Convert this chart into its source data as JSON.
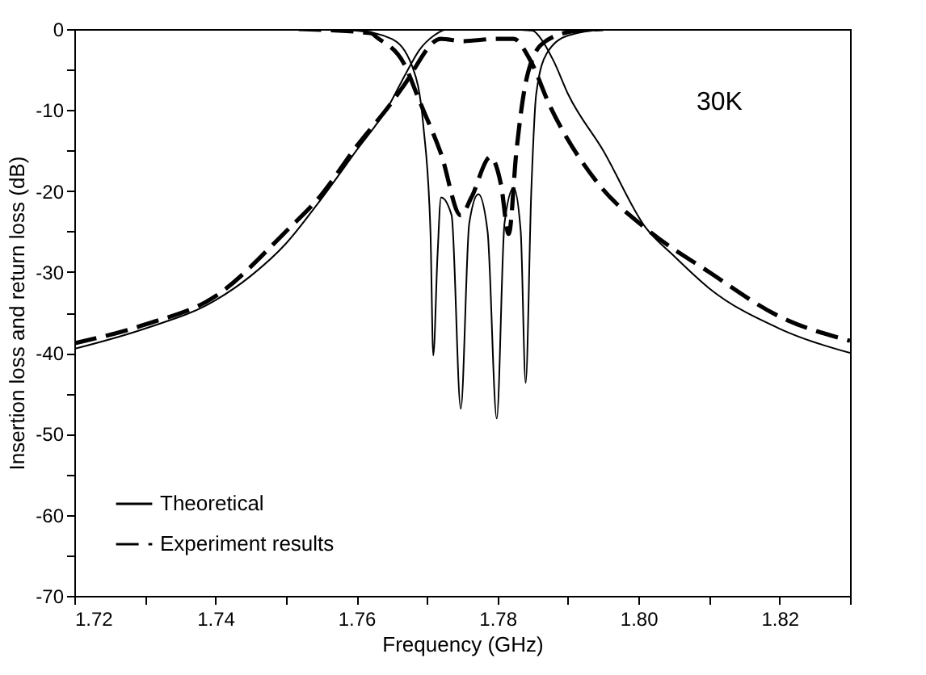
{
  "chart_data": {
    "type": "line",
    "xlabel": "Frequency (GHz)",
    "ylabel": "Insertion loss and return loss (dB)",
    "xlim": [
      1.72,
      1.83
    ],
    "ylim": [
      -70,
      0
    ],
    "xticks": [
      {
        "value": 1.72,
        "label": "1.72"
      },
      {
        "value": 1.73,
        "label": null
      },
      {
        "value": 1.74,
        "label": "1.74"
      },
      {
        "value": 1.75,
        "label": null
      },
      {
        "value": 1.76,
        "label": "1.76"
      },
      {
        "value": 1.77,
        "label": null
      },
      {
        "value": 1.78,
        "label": "1.78"
      },
      {
        "value": 1.79,
        "label": null
      },
      {
        "value": 1.8,
        "label": "1.80"
      },
      {
        "value": 1.81,
        "label": null
      },
      {
        "value": 1.82,
        "label": "1.82"
      },
      {
        "value": 1.83,
        "label": null
      }
    ],
    "yticks": [
      -70,
      {
        "value": -65,
        "label": null
      },
      -60,
      {
        "value": -55,
        "label": null
      },
      -50,
      {
        "value": -45,
        "label": null
      },
      -40,
      {
        "value": -35,
        "label": null
      },
      -30,
      {
        "value": -25,
        "label": null
      },
      -20,
      {
        "value": -15,
        "label": null
      },
      -10,
      {
        "value": -5,
        "label": null
      },
      0
    ],
    "legend": "bottom left",
    "grid": false,
    "marker": "none",
    "annotations": [
      "30K"
    ],
    "series": [
      {
        "name": "Theoretical",
        "color": "#000000",
        "line_style": "solid",
        "x": [
          1.72,
          1.73,
          1.74,
          1.745,
          1.75,
          1.755,
          1.76,
          1.7645,
          1.767,
          1.769,
          1.771,
          1.773,
          1.78,
          1.785,
          1.786,
          1.788,
          1.79,
          1.795,
          1.801,
          1.805,
          1.81,
          1.82,
          1.83
        ],
        "values": [
          -39.5,
          -37,
          -33.5,
          -30.5,
          -26.5,
          -21,
          -15,
          -9.6,
          -5.5,
          -2.5,
          -0.8,
          0,
          0,
          -0.2,
          -1,
          -4,
          -8,
          -15,
          -24.5,
          -28,
          -32,
          -37,
          -40
        ]
      },
      {
        "color": "#000000",
        "line_style": "solid",
        "x": [
          1.752,
          1.76,
          1.765,
          1.768,
          1.7695,
          1.7705,
          1.7709,
          1.7715,
          1.772,
          1.7735,
          1.7748,
          1.776,
          1.7773,
          1.7786,
          1.7799,
          1.781,
          1.7823,
          1.7833,
          1.784,
          1.7848,
          1.7855,
          1.787,
          1.79,
          1.795,
          1.8
        ],
        "values": [
          0,
          -0.2,
          -1.2,
          -4.8,
          -12,
          -25,
          -40.3,
          -28,
          -20.8,
          -23,
          -46.9,
          -24,
          -20.4,
          -25,
          -48.1,
          -24,
          -19.6,
          -25,
          -43.7,
          -20,
          -8,
          -3,
          -0.8,
          -0.1,
          0
        ]
      },
      {
        "name": "Experiment results",
        "color": "#000000",
        "line_style": "dashed",
        "x": [
          1.72,
          1.73,
          1.74,
          1.75,
          1.755,
          1.76,
          1.7648,
          1.7667,
          1.772,
          1.775,
          1.78,
          1.7823,
          1.7845,
          1.7875,
          1.7943,
          1.801,
          1.81,
          1.82,
          1.83
        ],
        "values": [
          -38.8,
          -36.5,
          -33,
          -25,
          -20.5,
          -14.5,
          -9.3,
          -7,
          -1.2,
          -1.5,
          -1.2,
          -1.2,
          -3.6,
          -9.6,
          -19.1,
          -24.6,
          -30,
          -35.5,
          -38.5
        ]
      },
      {
        "color": "#000000",
        "line_style": "dashed",
        "x": [
          1.7518,
          1.762,
          1.763,
          1.7667,
          1.769,
          1.772,
          1.7748,
          1.7763,
          1.779,
          1.7805,
          1.7816,
          1.7827,
          1.7838,
          1.785,
          1.787,
          1.7913,
          1.795
        ],
        "values": [
          0,
          -0.5,
          -1.1,
          -4.2,
          -9,
          -15.4,
          -23,
          -20.8,
          -15.8,
          -19.2,
          -25.3,
          -15,
          -7.6,
          -3.6,
          -1.4,
          -0.2,
          0
        ]
      }
    ]
  }
}
